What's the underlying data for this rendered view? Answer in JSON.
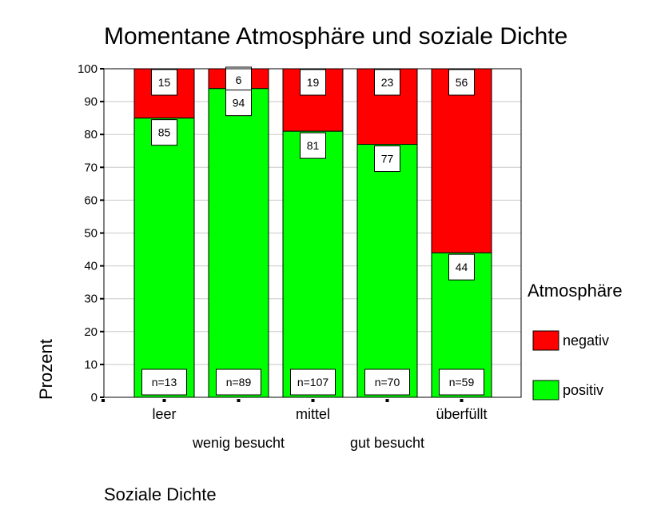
{
  "chart_data": {
    "type": "bar",
    "stacked": true,
    "title": "Momentane Atmosphäre und soziale Dichte",
    "xlabel": "Soziale Dichte",
    "ylabel": "Prozent",
    "ylim": [
      0,
      100
    ],
    "yticks": [
      0,
      10,
      20,
      30,
      40,
      50,
      60,
      70,
      80,
      90,
      100
    ],
    "grid": true,
    "categories": [
      "leer",
      "wenig besucht",
      "mittel",
      "gut besucht",
      "überfüllt"
    ],
    "n_labels": [
      "n=13",
      "n=89",
      "n=107",
      "n=70",
      "n=59"
    ],
    "series": [
      {
        "name": "positiv",
        "color": "#00ff00",
        "values": [
          85,
          94,
          81,
          77,
          44
        ]
      },
      {
        "name": "negativ",
        "color": "#ff0000",
        "values": [
          15,
          6,
          19,
          23,
          56
        ]
      }
    ],
    "legend": {
      "title": "Atmosphäre",
      "position": "right",
      "entries": [
        "negativ",
        "positiv"
      ]
    }
  }
}
